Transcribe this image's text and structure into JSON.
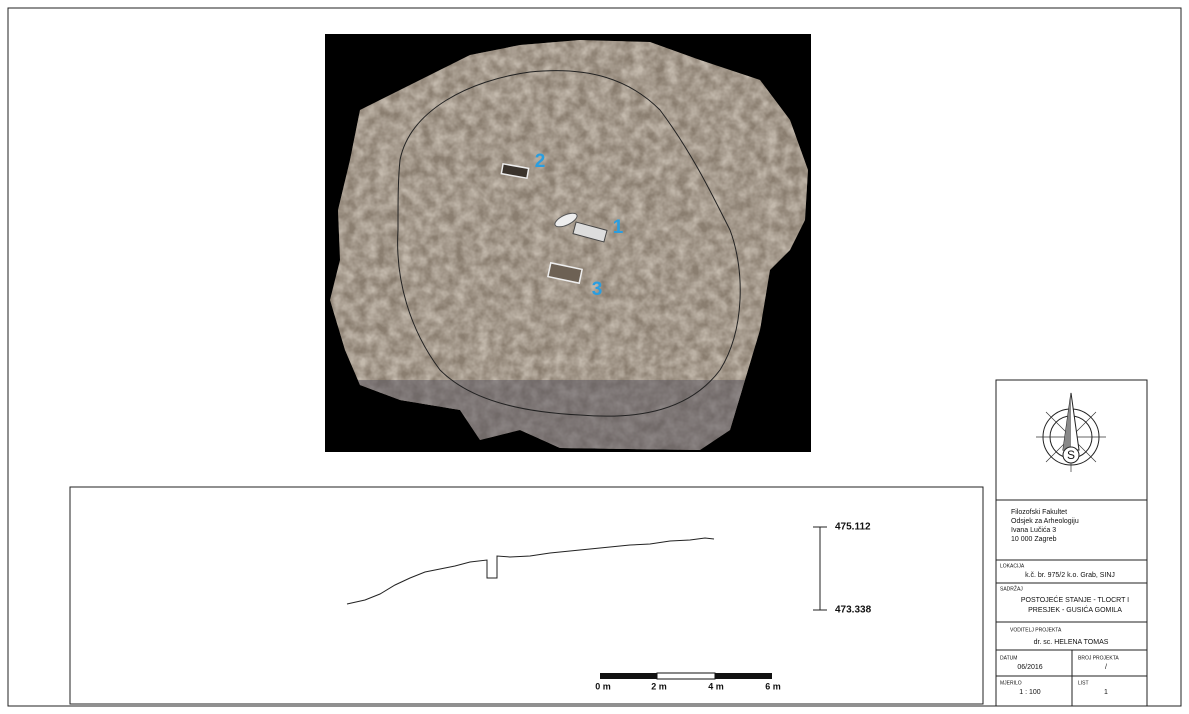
{
  "photo": {
    "labels": [
      "1",
      "2",
      "3"
    ]
  },
  "section": {
    "elevations": [
      "475.112",
      "473.338"
    ],
    "scale": [
      "0 m",
      "2 m",
      "4 m",
      "6 m"
    ]
  },
  "title_block": {
    "compass_letter": "S",
    "institution": [
      "Filozofski Fakultet",
      "Odsjek za Arheologiju",
      "Ivana Lučića 3",
      "10 000 Zagreb"
    ],
    "location_label": "LOKACIJA",
    "location": "k.č. br. 975/2 k.o. Grab, SINJ",
    "content_label": "SADRŽAJ",
    "content": [
      "POSTOJEĆE STANJE - TLOCRT I",
      "PRESJEK - GUSIĆA GOMILA"
    ],
    "leader_label": "VODITELJ PROJEKTA",
    "leader": "dr. sc. HELENA TOMAS",
    "date_label": "DATUM",
    "date": "06/2016",
    "project_no_label": "BROJ PROJEKTA",
    "project_no": "/",
    "scale_label": "MJERILO",
    "scale": "1 : 100",
    "sheet_label": "LIST",
    "sheet": "1"
  }
}
